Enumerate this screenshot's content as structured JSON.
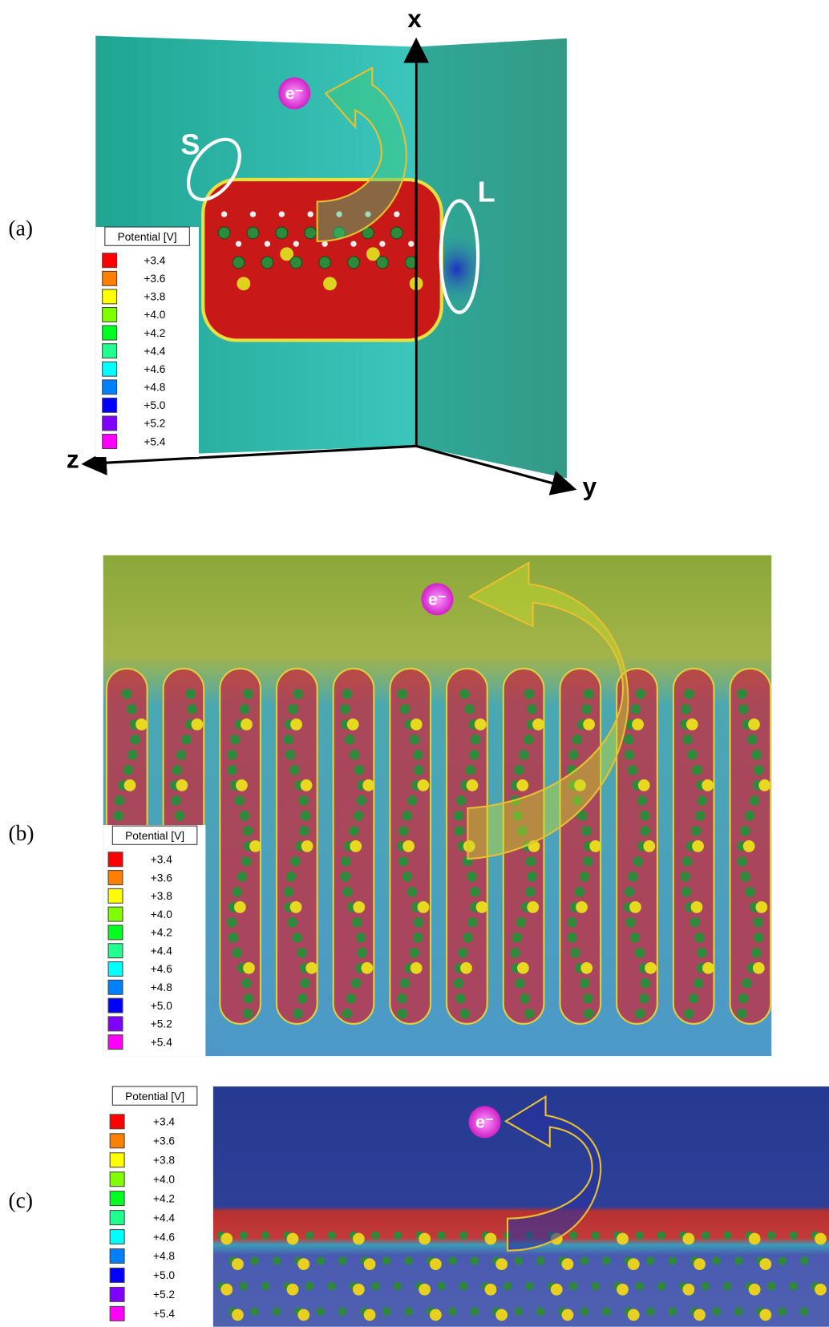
{
  "panels": [
    {
      "label": "(a)",
      "axes": {
        "x": "x",
        "y": "y",
        "z": "z"
      },
      "annotations": [
        "S",
        "L"
      ]
    },
    {
      "label": "(b)"
    },
    {
      "label": "(c)"
    }
  ],
  "electron": "e⁻",
  "legend": {
    "title": "Potential [V]",
    "entries": [
      {
        "label": "+3.4",
        "color": "#ff0000"
      },
      {
        "label": "+3.6",
        "color": "#ff8000"
      },
      {
        "label": "+3.8",
        "color": "#ffff00"
      },
      {
        "label": "+4.0",
        "color": "#80ff00"
      },
      {
        "label": "+4.2",
        "color": "#00ff20"
      },
      {
        "label": "+4.4",
        "color": "#20ff90"
      },
      {
        "label": "+4.6",
        "color": "#00ffff"
      },
      {
        "label": "+4.8",
        "color": "#0080ff"
      },
      {
        "label": "+5.0",
        "color": "#0000ff"
      },
      {
        "label": "+5.2",
        "color": "#8000ff"
      },
      {
        "label": "+5.4",
        "color": "#ff00ff"
      }
    ]
  }
}
